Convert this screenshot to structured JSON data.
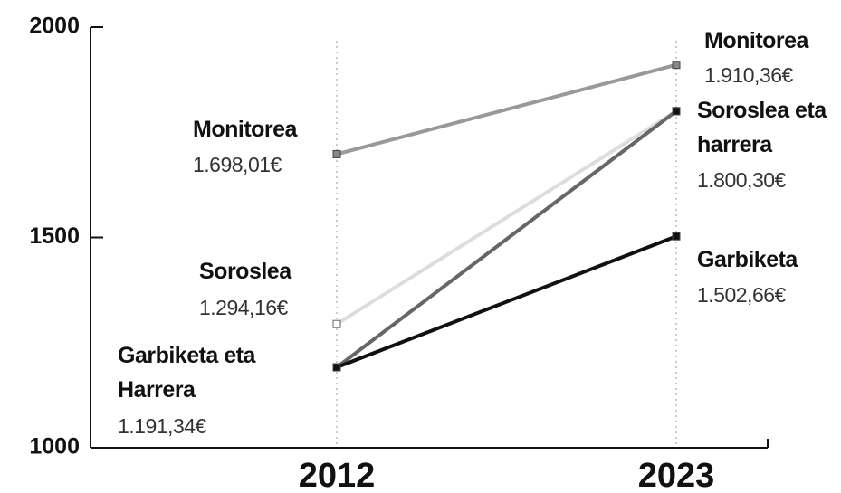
{
  "chart_data": {
    "type": "line",
    "categories": [
      "2012",
      "2023"
    ],
    "ylim": [
      1000,
      2000
    ],
    "yticks": [
      1000,
      1500,
      2000
    ],
    "grid": true,
    "series": [
      {
        "color": "#999999",
        "values": [
          1698.01,
          1910.36
        ],
        "point_names": [
          "Monitorea",
          "Monitorea"
        ],
        "value_labels": [
          "1.698,01€",
          "1.910,36€"
        ]
      },
      {
        "color": "#dddddd",
        "values": [
          1294.16,
          1800.3
        ],
        "point_names": [
          "Soroslea",
          "Soroslea eta harrera"
        ],
        "value_labels": [
          "1.294,16€",
          "1.800,30€"
        ]
      },
      {
        "color": "#666666",
        "values": [
          1191.34,
          1800.3
        ],
        "point_names": [
          "Garbiketa eta Harrera",
          null
        ],
        "value_labels": [
          "1.191,34€",
          null
        ]
      },
      {
        "color": "#111111",
        "values": [
          1191.34,
          1502.66
        ],
        "point_names": [
          null,
          "Garbiketa"
        ],
        "value_labels": [
          null,
          "1.502,66€"
        ]
      }
    ]
  }
}
